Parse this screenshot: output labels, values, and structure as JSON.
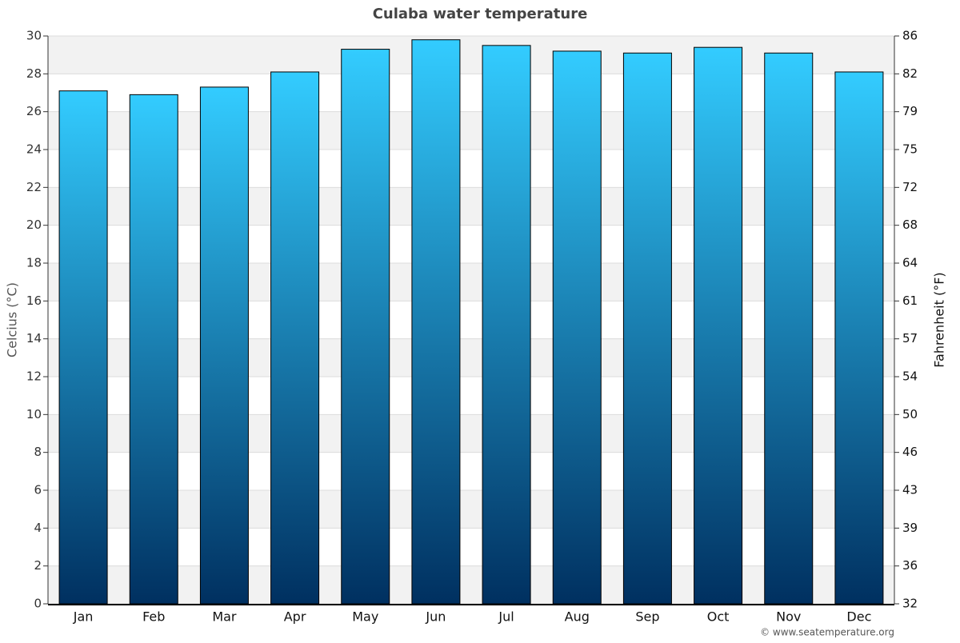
{
  "chart_data": {
    "type": "bar",
    "title": "Culaba water temperature",
    "categories": [
      "Jan",
      "Feb",
      "Mar",
      "Apr",
      "May",
      "Jun",
      "Jul",
      "Aug",
      "Sep",
      "Oct",
      "Nov",
      "Dec"
    ],
    "values": [
      27.1,
      26.9,
      27.3,
      28.1,
      29.3,
      29.8,
      29.5,
      29.2,
      29.1,
      29.4,
      29.1,
      28.1
    ],
    "colors": [
      "#33ccff",
      "#003060"
    ],
    "ylabel": "Celcius (°C)",
    "y2label": "Fahrenheit (°F)",
    "ylim": [
      0,
      30
    ],
    "yticks": [
      0,
      2,
      4,
      6,
      8,
      10,
      12,
      14,
      16,
      18,
      20,
      22,
      24,
      26,
      28,
      30
    ],
    "y2lim": [
      32,
      86
    ],
    "y2ticks": [
      32,
      {
        "value": 35.6,
        "label": "36"
      },
      {
        "value": 39.2,
        "label": "39"
      },
      {
        "value": 42.8,
        "label": "43"
      },
      {
        "value": 46.4,
        "label": "46"
      },
      50,
      {
        "value": 53.6,
        "label": "54"
      },
      {
        "value": 57.2,
        "label": "57"
      },
      {
        "value": 60.8,
        "label": "61"
      },
      {
        "value": 64.4,
        "label": "64"
      },
      68,
      {
        "value": 71.6,
        "label": "72"
      },
      {
        "value": 75.2,
        "label": "75"
      },
      {
        "value": 78.8,
        "label": "79"
      },
      {
        "value": 82.4,
        "label": "82"
      },
      86
    ],
    "grid": true,
    "credit": "© www.seatemperature.org"
  }
}
